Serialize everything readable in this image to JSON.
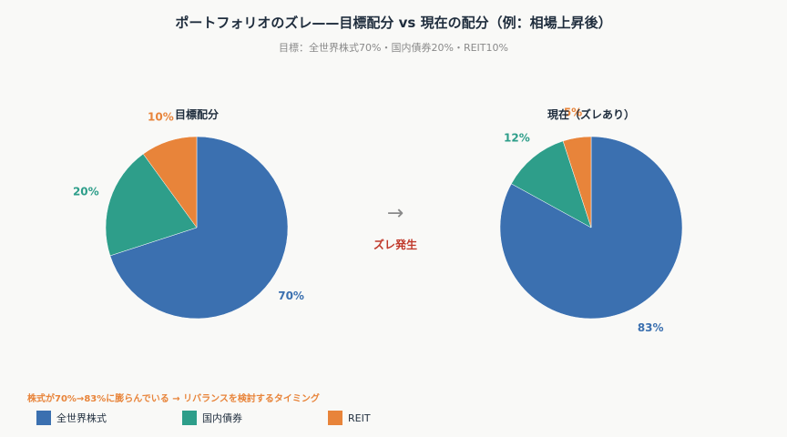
{
  "title": "ポートフォリオのズレ——目標配分 vs 現在の配分（例：相場上昇後）",
  "subtitle": "目標：全世界株式70%・国内債券20%・REIT10%",
  "arrow": "→",
  "drift_label": "ズレ発生",
  "note": "株式が70%→83%に膨らんでいる → リバランスを検討するタイミング",
  "colors": {
    "stocks": "#3b70b0",
    "bonds": "#2e9e8a",
    "reit": "#e8843a"
  },
  "chart_data": [
    {
      "type": "pie",
      "title": "目標配分",
      "slices": [
        {
          "label": "全世界株式",
          "value": 70,
          "pct_label": "70%"
        },
        {
          "label": "国内債券",
          "value": 20,
          "pct_label": "20%"
        },
        {
          "label": "REIT",
          "value": 10,
          "pct_label": "10%"
        }
      ]
    },
    {
      "type": "pie",
      "title": "現在（ズレあり）",
      "slices": [
        {
          "label": "全世界株式",
          "value": 83,
          "pct_label": "83%"
        },
        {
          "label": "国内債券",
          "value": 12,
          "pct_label": "12%"
        },
        {
          "label": "REIT",
          "value": 5,
          "pct_label": "5%"
        }
      ]
    }
  ],
  "legend": [
    {
      "label": "全世界株式",
      "color_key": "stocks"
    },
    {
      "label": "国内債券",
      "color_key": "bonds"
    },
    {
      "label": "REIT",
      "color_key": "reit"
    }
  ]
}
